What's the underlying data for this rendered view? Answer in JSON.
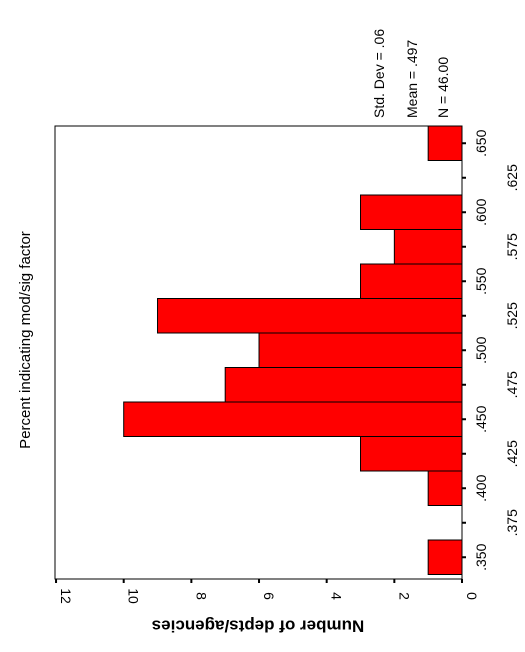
{
  "chart_data": {
    "type": "bar",
    "orientation": "rotated-90-clockwise",
    "title": "Percent indicating mod/sig factor",
    "ylabel": "Number of depts/agencies",
    "ylim": [
      0,
      12
    ],
    "y_ticks": [
      "0",
      "2",
      "4",
      "6",
      "8",
      "10",
      "12"
    ],
    "x_ticks": [
      ".350",
      ".375",
      ".400",
      ".425",
      ".450",
      ".475",
      ".500",
      ".525",
      ".550",
      ".575",
      ".600",
      ".625",
      ".650"
    ],
    "bins": [
      {
        "center": 0.35,
        "count": 1
      },
      {
        "center": 0.375,
        "count": 0
      },
      {
        "center": 0.4,
        "count": 1
      },
      {
        "center": 0.425,
        "count": 3
      },
      {
        "center": 0.45,
        "count": 10
      },
      {
        "center": 0.475,
        "count": 7
      },
      {
        "center": 0.5,
        "count": 6
      },
      {
        "center": 0.525,
        "count": 9
      },
      {
        "center": 0.55,
        "count": 3
      },
      {
        "center": 0.575,
        "count": 2
      },
      {
        "center": 0.6,
        "count": 3
      },
      {
        "center": 0.625,
        "count": 0
      },
      {
        "center": 0.65,
        "count": 1
      }
    ],
    "stats": [
      "Std. Dev = .06",
      "Mean = .497",
      "N = 46.00"
    ],
    "bar_color": "#ff0000",
    "grid": false
  }
}
